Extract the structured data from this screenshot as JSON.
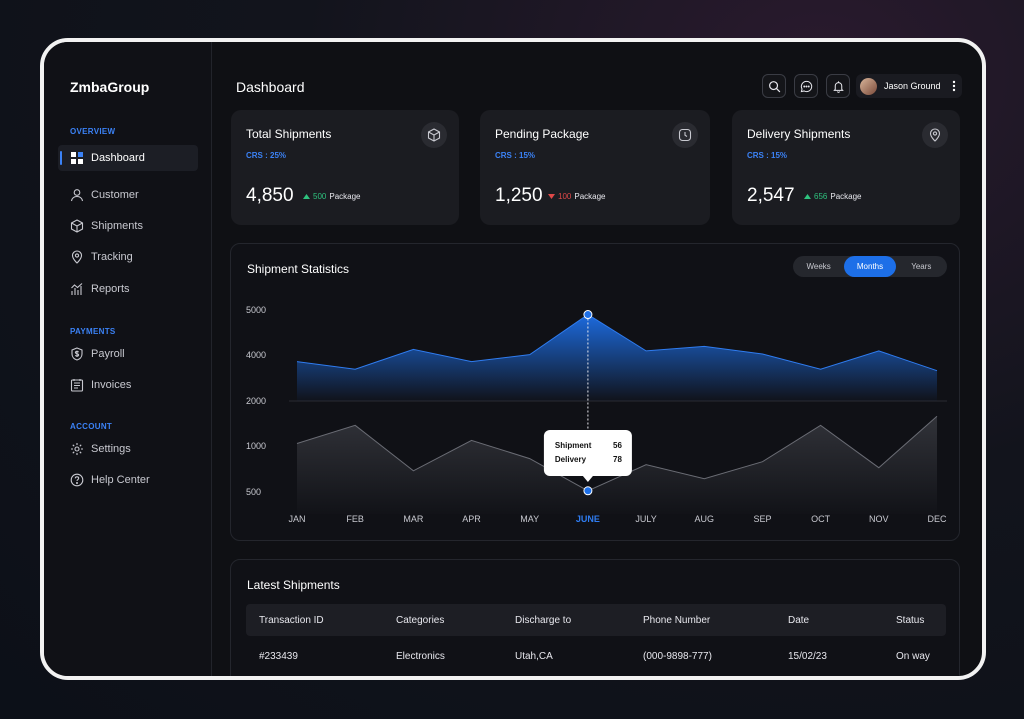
{
  "brand": "ZmbaGroup",
  "sidebar": {
    "sections": [
      {
        "label": "OVERVIEW",
        "items": [
          {
            "label": "Dashboard",
            "icon": "dashboard-icon",
            "active": true
          },
          {
            "label": "Customer",
            "icon": "user-icon"
          },
          {
            "label": "Shipments",
            "icon": "box-icon"
          },
          {
            "label": "Tracking",
            "icon": "location-pin-icon"
          },
          {
            "label": "Reports",
            "icon": "chart-icon"
          }
        ]
      },
      {
        "label": "PAYMENTS",
        "items": [
          {
            "label": "Payroll",
            "icon": "shield-dollar-icon"
          },
          {
            "label": "Invoices",
            "icon": "invoice-icon"
          }
        ]
      },
      {
        "label": "ACCOUNT",
        "items": [
          {
            "label": "Settings",
            "icon": "gear-icon"
          },
          {
            "label": "Help Center",
            "icon": "help-icon"
          }
        ]
      }
    ]
  },
  "header": {
    "title": "Dashboard",
    "user_name": "Jason Ground"
  },
  "cards": [
    {
      "title": "Total Shipments",
      "crs": "CRS : 25%",
      "value": "4,850",
      "delta": "500",
      "delta_unit": "Package",
      "trend": "up",
      "icon": "box-icon"
    },
    {
      "title": "Pending Package",
      "crs": "CRS : 15%",
      "value": "1,250",
      "delta": "100",
      "delta_unit": "Package",
      "trend": "down",
      "icon": "clock-icon"
    },
    {
      "title": "Delivery Shipments",
      "crs": "CRS : 15%",
      "value": "2,547",
      "delta": "656",
      "delta_unit": "Package",
      "trend": "up",
      "icon": "location-pin-icon"
    }
  ],
  "stats": {
    "title": "Shipment Statistics",
    "ranges": [
      "Weeks",
      "Months",
      "Years"
    ],
    "active_range": "Months",
    "tooltip": {
      "label1": "Shipment",
      "value1": "56",
      "label2": "Delivery",
      "value2": "78"
    }
  },
  "chart_data": {
    "type": "area",
    "x": [
      "JAN",
      "FEB",
      "MAR",
      "APR",
      "MAY",
      "JUNE",
      "JULY",
      "AUG",
      "SEP",
      "OCT",
      "NOV",
      "DEC"
    ],
    "y_ticks": [
      5000,
      4000,
      2000,
      1000,
      500
    ],
    "highlight_index": 5,
    "series": [
      {
        "values": [
          3300,
          3050,
          3700,
          3300,
          3530,
          4850,
          3650,
          3800,
          3550,
          3050,
          3650,
          3000
        ],
        "color": "#1d6fe8"
      },
      {
        "values": [
          1300,
          1600,
          850,
          1350,
          1050,
          520,
          950,
          720,
          1000,
          1600,
          900,
          1750
        ],
        "color": "#8a8c94"
      }
    ]
  },
  "latest": {
    "title": "Latest Shipments",
    "columns": [
      "Transaction ID",
      "Categories",
      "Discharge to",
      "Phone Number",
      "Date",
      "Status"
    ],
    "rows": [
      [
        "#233439",
        "Electronics",
        "Utah,CA",
        "(000-9898-777)",
        "15/02/23",
        "On way"
      ]
    ]
  }
}
